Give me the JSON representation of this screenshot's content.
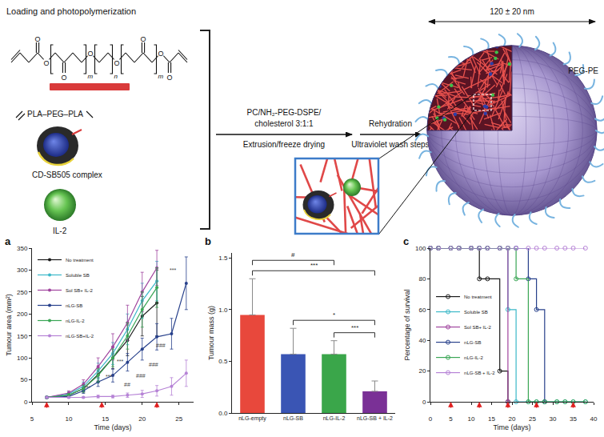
{
  "diagram": {
    "heading": "Loading and photopolymerization",
    "atom_label": "O",
    "repeat_subscripts": [
      "m",
      "n",
      "m"
    ],
    "polymer_label": "PLA–PEG–PLA",
    "complex_label": "CD-SB505 complex",
    "cytokine_label": "IL-2",
    "step1_above": [
      "PC/NH₂-PEG-DSPE/",
      "cholesterol 3:1:1"
    ],
    "step1_below": "Extrusion/freeze drying",
    "step2_above": "Rehydration",
    "step2_below": "Ultraviolet wash steps",
    "size_label": "120 ± 20 nm",
    "shell_label": "PEG-PE"
  },
  "chart_data": [
    {
      "panel": "a",
      "type": "line",
      "x_label": "Time (days)",
      "y_label": "Tumour area (mm²)",
      "xlim": [
        5,
        27
      ],
      "xticks": [
        5,
        10,
        15,
        20,
        25
      ],
      "ylim": [
        0,
        350
      ],
      "yticks": [
        0,
        50,
        100,
        150,
        200,
        250,
        300,
        350
      ],
      "legend": "top left",
      "marker": "circle",
      "treatment_days": [
        7,
        14.5,
        22
      ],
      "series": [
        {
          "name": "No treatment",
          "color": "#1a1a1a",
          "x": [
            7,
            10,
            12,
            14,
            16,
            18,
            20,
            22
          ],
          "values": [
            10,
            15,
            30,
            62,
            100,
            140,
            195,
            225
          ],
          "errors": [
            2,
            4,
            8,
            15,
            25,
            35,
            45,
            75
          ]
        },
        {
          "name": "Soluble SB",
          "color": "#3bb8c8",
          "x": [
            7,
            10,
            12,
            14,
            16,
            18,
            20,
            22
          ],
          "values": [
            10,
            18,
            35,
            70,
            110,
            165,
            230,
            275
          ],
          "errors": [
            2,
            5,
            10,
            18,
            25,
            35,
            40,
            45
          ]
        },
        {
          "name": "Sol SB+ IL-2",
          "color": "#a0449e",
          "x": [
            7,
            10,
            12,
            14,
            16,
            18,
            20,
            22
          ],
          "values": [
            10,
            20,
            40,
            80,
            125,
            180,
            250,
            305
          ],
          "errors": [
            2,
            5,
            10,
            20,
            30,
            40,
            45,
            40
          ]
        },
        {
          "name": "nLG-SB",
          "color": "#27408b",
          "x": [
            7,
            10,
            12,
            14,
            16,
            18,
            20,
            22,
            24,
            26
          ],
          "values": [
            10,
            12,
            25,
            45,
            60,
            90,
            120,
            148,
            155,
            270
          ],
          "errors": [
            2,
            3,
            6,
            10,
            15,
            20,
            25,
            30,
            35,
            60
          ]
        },
        {
          "name": "nLG-IL-2",
          "color": "#3aa655",
          "x": [
            7,
            10,
            12,
            14,
            16,
            18,
            20,
            22
          ],
          "values": [
            10,
            15,
            30,
            60,
            100,
            150,
            210,
            260
          ],
          "errors": [
            2,
            4,
            8,
            15,
            20,
            30,
            40,
            45
          ]
        },
        {
          "name": "nLG-SB+IL-2",
          "color": "#b683d6",
          "x": [
            7,
            10,
            12,
            14,
            16,
            18,
            20,
            22,
            24,
            26
          ],
          "values": [
            10,
            10,
            10,
            12,
            12,
            15,
            18,
            25,
            35,
            65
          ],
          "errors": [
            1,
            2,
            2,
            3,
            3,
            5,
            8,
            12,
            20,
            30
          ]
        }
      ],
      "annotations": [
        {
          "x": 12.5,
          "y": 32,
          "text": "***"
        },
        {
          "x": 15.5,
          "y": 58,
          "text": "***"
        },
        {
          "x": 17,
          "y": 92,
          "text": "***"
        },
        {
          "x": 18,
          "y": 40,
          "text": "##"
        },
        {
          "x": 19.8,
          "y": 60,
          "text": "###"
        },
        {
          "x": 21.5,
          "y": 85,
          "text": "###"
        },
        {
          "x": 22.5,
          "y": 128,
          "text": "###"
        },
        {
          "x": 24.2,
          "y": 300,
          "text": "***"
        }
      ]
    },
    {
      "panel": "b",
      "type": "bar",
      "y_label": "Tumour mass (g)",
      "categories": [
        "nLG-empty",
        "nLG-SB",
        "nLG-IL-2",
        "nLG-SB + IL-2"
      ],
      "values": [
        0.95,
        0.57,
        0.57,
        0.21
      ],
      "errors": [
        0.35,
        0.25,
        0.13,
        0.1
      ],
      "colors": [
        "#e8483c",
        "#3a55b4",
        "#3aa64a",
        "#7a3096"
      ],
      "ylim": [
        0,
        1.55
      ],
      "yticks": [
        {
          "value": 0,
          "label": "0.0"
        },
        {
          "value": 0.5,
          "label": "0.5"
        },
        {
          "value": 1,
          "label": "1.0"
        },
        {
          "value": 1.5,
          "label": "1.5"
        }
      ],
      "comparisons": [
        {
          "from": "nLG-empty",
          "to": "nLG-IL-2",
          "text": "#"
        },
        {
          "from": "nLG-empty",
          "to": "nLG-SB + IL-2",
          "text": "***"
        },
        {
          "from": "nLG-SB",
          "to": "nLG-SB + IL-2",
          "text": "*"
        },
        {
          "from": "nLG-IL-2",
          "to": "nLG-SB + IL-2",
          "text": "***"
        }
      ]
    },
    {
      "panel": "c",
      "type": "line",
      "line_style": "step",
      "marker": "open circle",
      "x_label": "Time (days)",
      "y_label": "Percentage of survival",
      "xlim": [
        0,
        40
      ],
      "xticks": [
        0,
        5,
        10,
        15,
        20,
        25,
        30,
        35,
        40
      ],
      "ylim": [
        0,
        100
      ],
      "yticks": [
        0,
        20,
        40,
        60,
        80,
        100
      ],
      "legend": "middle left",
      "treatment_days": [
        5,
        12,
        19,
        26,
        35
      ],
      "series": [
        {
          "name": "No treatment",
          "color": "#1a1a1a",
          "x": [
            0,
            2,
            5,
            7,
            10,
            12,
            14,
            17,
            19
          ],
          "values": [
            100,
            100,
            100,
            100,
            100,
            80,
            80,
            20,
            0
          ]
        },
        {
          "name": "Soluble SB",
          "color": "#3bb8c8",
          "x": [
            0,
            2,
            5,
            7,
            10,
            12,
            14,
            17,
            19,
            21,
            24,
            26,
            28,
            31,
            33,
            35,
            38
          ],
          "values": [
            100,
            100,
            100,
            100,
            100,
            100,
            100,
            100,
            60,
            0,
            0,
            0,
            0,
            0,
            0,
            0,
            0
          ]
        },
        {
          "name": "Sol SB+ IL-2",
          "color": "#a0449e",
          "x": [
            0,
            2,
            5,
            7,
            10,
            12,
            14,
            17,
            19
          ],
          "values": [
            100,
            100,
            100,
            100,
            100,
            100,
            100,
            100,
            0
          ]
        },
        {
          "name": "nLG-SB",
          "color": "#27408b",
          "x": [
            0,
            2,
            5,
            7,
            10,
            12,
            14,
            17,
            19,
            21,
            24,
            26,
            28
          ],
          "values": [
            100,
            100,
            100,
            100,
            100,
            100,
            100,
            100,
            100,
            100,
            80,
            60,
            0
          ]
        },
        {
          "name": "nLG-IL-2",
          "color": "#3aa655",
          "x": [
            0,
            2,
            5,
            7,
            10,
            12,
            14,
            17,
            19,
            21,
            24,
            26,
            28,
            31,
            33,
            35,
            38
          ],
          "values": [
            100,
            100,
            100,
            100,
            100,
            100,
            100,
            100,
            100,
            80,
            0,
            0,
            0,
            0,
            0,
            0,
            0
          ]
        },
        {
          "name": "nLG-SB + IL-2",
          "color": "#b683d6",
          "x": [
            0,
            2,
            5,
            7,
            10,
            12,
            14,
            17,
            19,
            21,
            24,
            26,
            28,
            31,
            33,
            35,
            38
          ],
          "values": [
            100,
            100,
            100,
            100,
            100,
            100,
            100,
            100,
            100,
            100,
            100,
            100,
            100,
            100,
            100,
            100,
            100
          ]
        }
      ]
    }
  ]
}
